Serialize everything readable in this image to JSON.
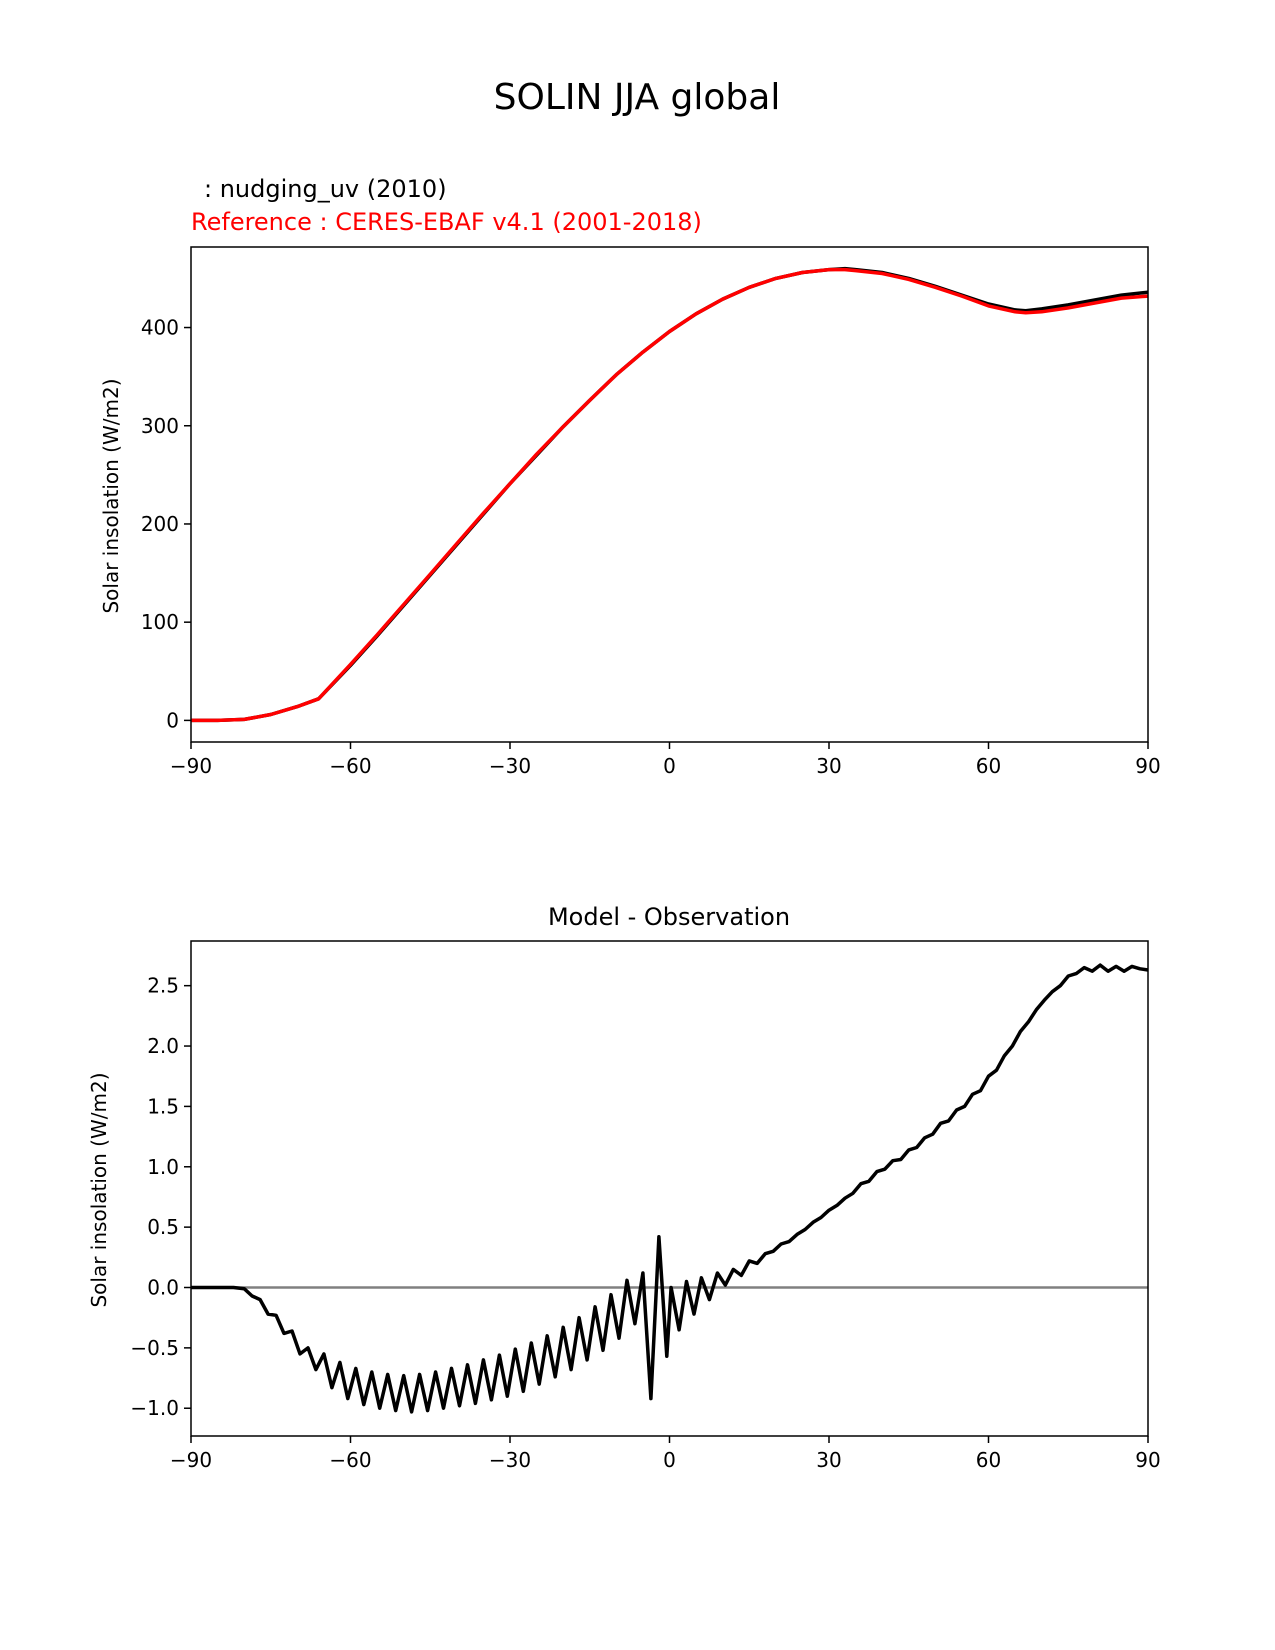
{
  "figure": {
    "title": "SOLIN JJA global"
  },
  "chart_data": [
    {
      "type": "line",
      "title": "",
      "subtitle_model": ": nudging_uv (2010)",
      "subtitle_reference": "Reference : CERES-EBAF v4.1 (2001-2018)",
      "xlabel": "",
      "ylabel": "Solar insolation (W/m2)",
      "xlim": [
        -90,
        90
      ],
      "ylim": [
        -22,
        482
      ],
      "xticks": [
        -90,
        -60,
        -30,
        0,
        30,
        60,
        90
      ],
      "xtick_labels": [
        "−90",
        "−60",
        "−30",
        "0",
        "30",
        "60",
        "90"
      ],
      "yticks": [
        0,
        100,
        200,
        300,
        400
      ],
      "ytick_labels": [
        "0",
        "100",
        "200",
        "300",
        "400"
      ],
      "grid": false,
      "series": [
        {
          "color": "#000000",
          "x": [
            -90,
            -85,
            -80,
            -75,
            -70,
            -66,
            -60,
            -55,
            -50,
            -45,
            -40,
            -35,
            -30,
            -25,
            -20,
            -15,
            -10,
            -5,
            0,
            5,
            10,
            15,
            20,
            25,
            30,
            33,
            35,
            40,
            45,
            50,
            55,
            60,
            65,
            67,
            70,
            75,
            80,
            85,
            90
          ],
          "y": [
            0,
            0,
            1,
            6,
            14,
            22,
            56,
            86,
            117,
            148,
            179,
            210,
            241,
            270,
            299,
            326,
            352,
            375,
            396,
            414,
            429,
            441,
            450,
            456,
            459,
            460,
            459,
            456,
            450,
            442,
            433,
            424,
            418,
            417,
            419,
            423,
            428,
            433,
            436
          ]
        },
        {
          "color": "#ff0000",
          "x": [
            -90,
            -85,
            -80,
            -75,
            -70,
            -66,
            -60,
            -55,
            -50,
            -45,
            -40,
            -35,
            -30,
            -25,
            -20,
            -15,
            -10,
            -5,
            0,
            5,
            10,
            15,
            20,
            25,
            30,
            33,
            35,
            40,
            45,
            50,
            55,
            60,
            65,
            67,
            70,
            75,
            80,
            85,
            90
          ],
          "y": [
            0,
            0,
            1,
            6,
            14,
            22,
            57,
            87,
            118,
            149,
            180,
            211,
            241,
            271,
            299,
            326,
            352,
            375,
            396,
            414,
            429,
            441,
            450,
            456,
            459,
            459,
            458,
            455,
            449,
            441,
            432,
            422,
            416,
            415,
            416,
            420,
            425,
            430,
            432
          ]
        }
      ]
    },
    {
      "type": "line",
      "title": "Model - Observation",
      "xlabel": "",
      "ylabel": "Solar insolation (W/m2)",
      "xlim": [
        -90,
        90
      ],
      "ylim": [
        -1.23,
        2.87
      ],
      "xticks": [
        -90,
        -60,
        -30,
        0,
        30,
        60,
        90
      ],
      "xtick_labels": [
        "−90",
        "−60",
        "−30",
        "0",
        "30",
        "60",
        "90"
      ],
      "yticks": [
        -1.0,
        -0.5,
        0.0,
        0.5,
        1.0,
        1.5,
        2.0,
        2.5
      ],
      "ytick_labels": [
        "−1.0",
        "−0.5",
        "0.0",
        "0.5",
        "1.0",
        "1.5",
        "2.0",
        "2.5"
      ],
      "grid": false,
      "zero_line_color": "#808080",
      "series": [
        {
          "color": "#000000",
          "x": [
            -90,
            -88,
            -86,
            -84,
            -82,
            -80,
            -78.5,
            -77,
            -75.5,
            -74,
            -72.5,
            -71,
            -69.5,
            -68,
            -66.5,
            -65,
            -63.5,
            -62,
            -60.5,
            -59,
            -57.5,
            -56,
            -54.5,
            -53,
            -51.5,
            -50,
            -48.5,
            -47,
            -45.5,
            -44,
            -42.5,
            -41,
            -39.5,
            -38,
            -36.5,
            -35,
            -33.5,
            -32,
            -30.5,
            -29,
            -27.5,
            -26,
            -24.5,
            -23,
            -21.5,
            -20,
            -18.5,
            -17,
            -15.5,
            -14,
            -12.5,
            -11,
            -9.5,
            -8,
            -6.5,
            -5,
            -3.5,
            -2,
            -0.5,
            0.3,
            1.8,
            3.2,
            4.6,
            6,
            7.5,
            9,
            10.5,
            12,
            13.5,
            15,
            16.5,
            18,
            19.5,
            21,
            22.5,
            24,
            25.5,
            27,
            28.5,
            30,
            31.5,
            33,
            34.5,
            36,
            37.5,
            39,
            40.5,
            42,
            43.5,
            45,
            46.5,
            48,
            49.5,
            51,
            52.5,
            54,
            55.5,
            57,
            58.5,
            60,
            61.5,
            63,
            64.5,
            66,
            67.5,
            69,
            70.5,
            72,
            73.5,
            75,
            76.5,
            78,
            79.5,
            81,
            82.5,
            84,
            85.5,
            87,
            88.5,
            90
          ],
          "y": [
            0,
            0,
            0,
            0,
            0,
            -0.01,
            -0.07,
            -0.1,
            -0.22,
            -0.23,
            -0.38,
            -0.36,
            -0.55,
            -0.5,
            -0.68,
            -0.55,
            -0.83,
            -0.62,
            -0.92,
            -0.67,
            -0.97,
            -0.7,
            -1.0,
            -0.72,
            -1.02,
            -0.73,
            -1.03,
            -0.72,
            -1.02,
            -0.7,
            -1.0,
            -0.67,
            -0.98,
            -0.64,
            -0.96,
            -0.6,
            -0.93,
            -0.56,
            -0.9,
            -0.51,
            -0.86,
            -0.46,
            -0.8,
            -0.4,
            -0.74,
            -0.33,
            -0.68,
            -0.25,
            -0.6,
            -0.16,
            -0.52,
            -0.06,
            -0.42,
            0.06,
            -0.3,
            0.12,
            -0.92,
            0.42,
            -0.57,
            0.0,
            -0.35,
            0.05,
            -0.22,
            0.08,
            -0.1,
            0.12,
            0.02,
            0.15,
            0.1,
            0.22,
            0.2,
            0.28,
            0.3,
            0.36,
            0.38,
            0.44,
            0.48,
            0.54,
            0.58,
            0.64,
            0.68,
            0.74,
            0.78,
            0.86,
            0.88,
            0.96,
            0.98,
            1.05,
            1.06,
            1.14,
            1.16,
            1.24,
            1.27,
            1.36,
            1.38,
            1.47,
            1.5,
            1.6,
            1.63,
            1.75,
            1.8,
            1.92,
            2.0,
            2.12,
            2.2,
            2.3,
            2.38,
            2.45,
            2.5,
            2.58,
            2.6,
            2.65,
            2.62,
            2.67,
            2.62,
            2.66,
            2.62,
            2.66,
            2.64,
            2.63
          ]
        }
      ]
    }
  ]
}
